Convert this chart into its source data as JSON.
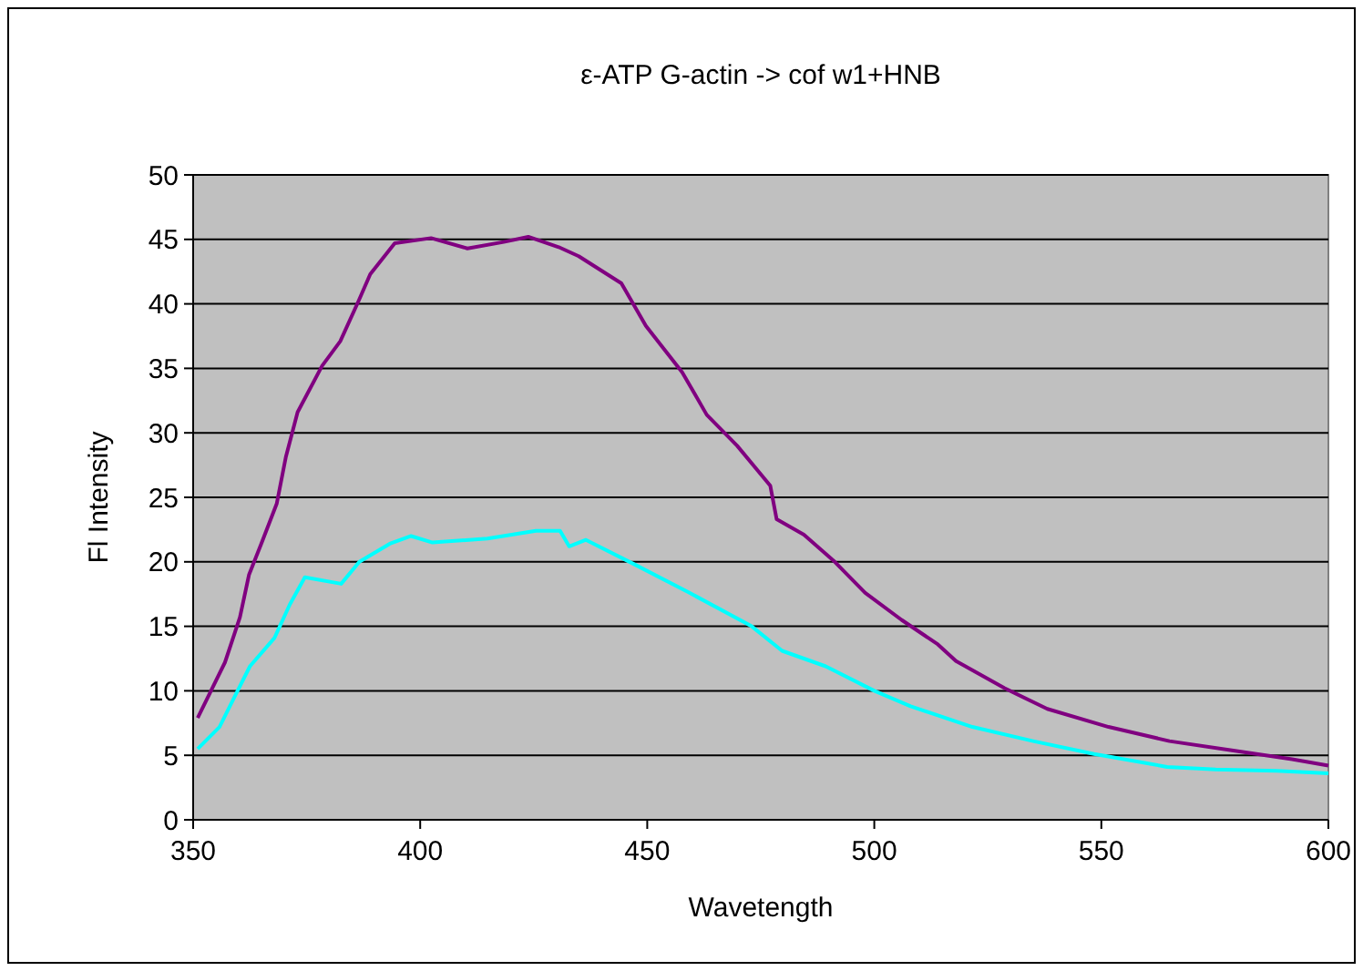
{
  "chart_data": {
    "type": "line",
    "title": "ε-ATP G-actin -> cof w1+HNB",
    "xlabel": "Wavetength",
    "ylabel": "Fl Intensity",
    "xlim": [
      350,
      600
    ],
    "ylim": [
      0,
      50
    ],
    "xticks": [
      350,
      400,
      450,
      500,
      550,
      600
    ],
    "yticks": [
      0,
      5,
      10,
      15,
      20,
      25,
      30,
      35,
      40,
      45,
      50
    ],
    "grid": "y",
    "marker": "none",
    "line_style": "solid",
    "series": [
      {
        "color": "#800080",
        "x": [
          351,
          357,
          360.3,
          362.3,
          365,
          368.4,
          370.4,
          373,
          378.4,
          382.4,
          386.4,
          389,
          394.4,
          402.4,
          410.4,
          418.4,
          423.8,
          430.5,
          434.9,
          444.3,
          449.7,
          457.7,
          463.1,
          469.8,
          477.1,
          478.5,
          484.5,
          491.3,
          498,
          506,
          514,
          518,
          528.7,
          538.1,
          551.6,
          565,
          578.4,
          592,
          600
        ],
        "values": [
          7.9,
          12.2,
          15.7,
          19,
          21.4,
          24.5,
          28.1,
          31.6,
          35.2,
          37.1,
          40.2,
          42.3,
          44.7,
          45.1,
          44.3,
          44.8,
          45.2,
          44.4,
          43.7,
          41.6,
          38.3,
          34.7,
          31.4,
          29,
          25.9,
          23.3,
          22.1,
          20,
          17.6,
          15.5,
          13.6,
          12.3,
          10.2,
          8.6,
          7.2,
          6.1,
          5.4,
          4.7,
          4.2
        ]
      },
      {
        "color": "#00ffff",
        "x": [
          351,
          355.8,
          358.5,
          362.5,
          367.9,
          371.3,
          374.6,
          382.6,
          386.6,
          393.3,
          398,
          402.7,
          414.8,
          425.5,
          430.8,
          432.8,
          436.5,
          447.2,
          459.3,
          473,
          479.7,
          489.3,
          500,
          508,
          521.6,
          535,
          548.4,
          564.5,
          575.2,
          588.6,
          600
        ],
        "values": [
          5.5,
          7.2,
          9.1,
          11.9,
          14.1,
          16.7,
          18.8,
          18.3,
          20,
          21.4,
          22,
          21.5,
          21.8,
          22.4,
          22.4,
          21.2,
          21.7,
          19.8,
          17.6,
          15,
          13.1,
          11.9,
          10,
          8.8,
          7.2,
          6.1,
          5.1,
          4.1,
          3.9,
          3.8,
          3.6
        ]
      }
    ]
  }
}
